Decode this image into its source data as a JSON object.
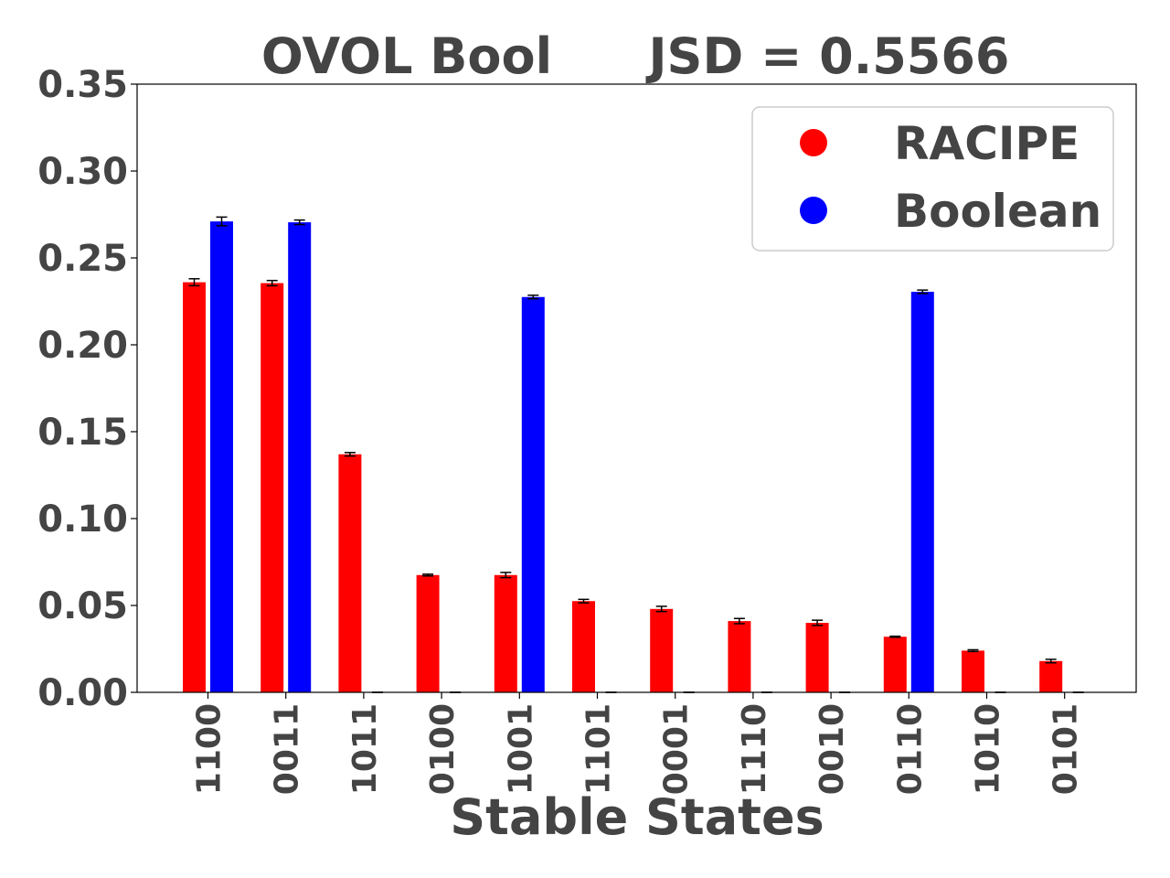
{
  "chart_data": {
    "type": "bar",
    "title_left": "OVOL Bool",
    "title_right": "JSD = 0.5566",
    "xlabel": "Stable States",
    "ylabel": "",
    "ylim": [
      0,
      0.35
    ],
    "yticks": [
      "0.00",
      "0.05",
      "0.10",
      "0.15",
      "0.20",
      "0.25",
      "0.30",
      "0.35"
    ],
    "categories": [
      "1100",
      "0011",
      "1011",
      "0100",
      "1001",
      "1101",
      "0001",
      "1110",
      "0010",
      "0110",
      "1010",
      "0101"
    ],
    "series": [
      {
        "name": "RACIPE",
        "color": "#ff0000",
        "values": [
          0.236,
          0.2355,
          0.137,
          0.0675,
          0.0675,
          0.0525,
          0.048,
          0.041,
          0.04,
          0.032,
          0.024,
          0.018
        ],
        "errors": [
          0.002,
          0.0015,
          0.001,
          0.0005,
          0.0015,
          0.001,
          0.0015,
          0.0015,
          0.0015,
          0.0003,
          0.0005,
          0.001
        ]
      },
      {
        "name": "Boolean",
        "color": "#0000ff",
        "values": [
          0.271,
          0.2705,
          0,
          0,
          0.2275,
          0,
          0,
          0,
          0,
          0.2305,
          0,
          0
        ],
        "errors": [
          0.0025,
          0.0013,
          0,
          0,
          0.001,
          0,
          0,
          0,
          0,
          0.001,
          0,
          0
        ]
      }
    ],
    "legend_position": "upper right",
    "grid": false
  }
}
